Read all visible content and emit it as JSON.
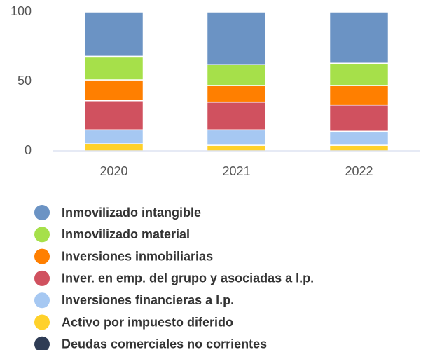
{
  "chart_data": {
    "type": "stacked_bar",
    "categories": [
      "2020",
      "2021",
      "2022"
    ],
    "series": [
      {
        "name": "Activo por impuesto diferido",
        "color": "#ffd12a",
        "values": [
          5,
          4,
          4
        ]
      },
      {
        "name": "Inversiones financieras a l.p.",
        "color": "#a6c8f2",
        "values": [
          10,
          11,
          10
        ]
      },
      {
        "name": "Inver. en emp. del grupo y asociadas a l.p.",
        "color": "#d0515f",
        "values": [
          21,
          20,
          19
        ]
      },
      {
        "name": "Inversiones inmobiliarias",
        "color": "#ff7f00",
        "values": [
          15,
          12,
          14
        ]
      },
      {
        "name": "Inmovilizado material",
        "color": "#a6e04a",
        "values": [
          17,
          15,
          16
        ]
      },
      {
        "name": "Inmovilizado intangible",
        "color": "#6b93c4",
        "values": [
          32,
          38,
          37
        ]
      },
      {
        "name": "Deudas comerciales no corrientes",
        "color": "#2f3c55",
        "values": [
          0,
          0,
          0
        ]
      }
    ],
    "legend_order": [
      5,
      4,
      3,
      2,
      1,
      0,
      6
    ],
    "ylim": [
      0,
      100
    ],
    "yticks": [
      0,
      50,
      100
    ],
    "grid": false
  }
}
